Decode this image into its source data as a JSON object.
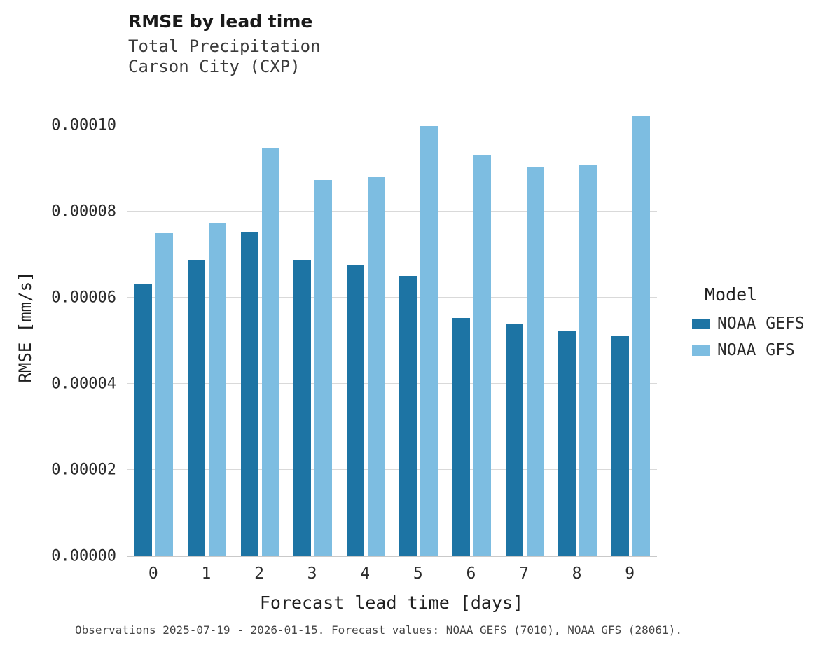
{
  "header": {
    "title": "RMSE by lead time",
    "subtitle1": "Total Precipitation",
    "subtitle2": "Carson City (CXP)"
  },
  "chart_data": {
    "type": "bar",
    "title": "RMSE by lead time",
    "subtitle": [
      "Total Precipitation",
      "Carson City (CXP)"
    ],
    "xlabel": "Forecast lead time [days]",
    "ylabel": "RMSE [mm/s]",
    "categories": [
      "0",
      "1",
      "2",
      "3",
      "4",
      "5",
      "6",
      "7",
      "8",
      "9"
    ],
    "series": [
      {
        "name": "NOAA GEFS",
        "color": "#1d74a4",
        "values": [
          6.32e-05,
          6.88e-05,
          7.52e-05,
          6.88e-05,
          6.74e-05,
          6.5e-05,
          5.53e-05,
          5.38e-05,
          5.21e-05,
          5.1e-05
        ]
      },
      {
        "name": "NOAA GFS",
        "color": "#7dbde1",
        "values": [
          7.5e-05,
          7.73e-05,
          9.47e-05,
          8.73e-05,
          8.79e-05,
          9.98e-05,
          9.29e-05,
          9.04e-05,
          9.09e-05,
          0.0001023
        ]
      }
    ],
    "ylim": [
      0,
      0.0001063
    ],
    "yticks": [
      0.0,
      2e-05,
      4e-05,
      6e-05,
      8e-05,
      0.0001
    ],
    "ytick_labels": [
      "0.00000",
      "0.00002",
      "0.00004",
      "0.00006",
      "0.00008",
      "0.00010"
    ],
    "legend_title": "Model",
    "legend_position": "right",
    "grid": true
  },
  "footer": {
    "caption": "Observations 2025-07-19 - 2026-01-15. Forecast values: NOAA GEFS (7010), NOAA GFS (28061)."
  }
}
